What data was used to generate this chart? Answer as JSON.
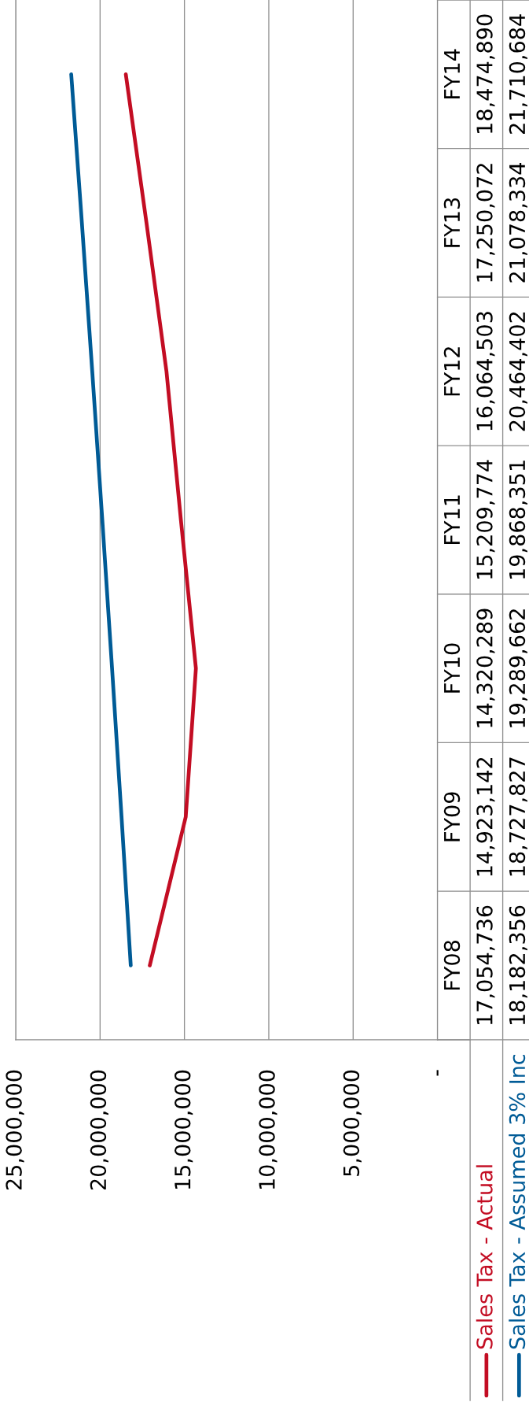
{
  "chart_data": {
    "type": "line",
    "orientation": "horizontal",
    "categories": [
      "FY14",
      "FY13",
      "FY12",
      "FY11",
      "FY10",
      "FY09",
      "FY08"
    ],
    "series": [
      {
        "name": "Sales Tax - Actual",
        "color": "#c30d23",
        "values": [
          18474890,
          17250072,
          16064503,
          15209774,
          14320289,
          14923142,
          17054736
        ],
        "value_labels": [
          "18,474,890",
          "17,250,072",
          "16,064,503",
          "15,209,774",
          "14,320,289",
          "14,923,142",
          "17,054,736"
        ]
      },
      {
        "name": "Sales Tax - Assumed 3% Inc",
        "color": "#005b96",
        "values": [
          21710684,
          21078334,
          20464402,
          19868351,
          19289662,
          18727827,
          18182356
        ],
        "value_labels": [
          "21,710,684",
          "21,078,334",
          "20,464,402",
          "19,868,351",
          "19,289,662",
          "18,727,827",
          "18,182,356"
        ]
      }
    ],
    "xlim": [
      25000000,
      0
    ],
    "xticks": [
      {
        "value": 25000000,
        "label": "25,000,000"
      },
      {
        "value": 20000000,
        "label": "20,000,000"
      },
      {
        "value": 15000000,
        "label": "15,000,000"
      },
      {
        "value": 10000000,
        "label": "10,000,000"
      },
      {
        "value": 5000000,
        "label": "5,000,000"
      },
      {
        "value": 0,
        "label": "-"
      }
    ],
    "grid": "x",
    "legend": "bottom right"
  }
}
